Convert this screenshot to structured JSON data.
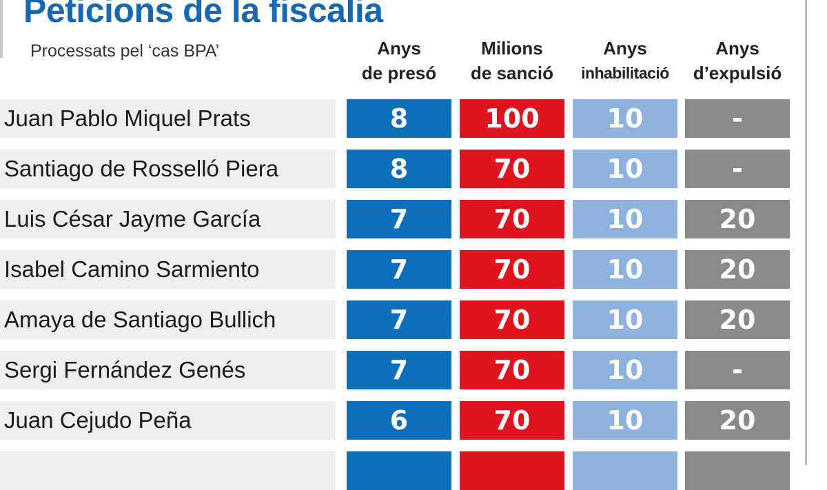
{
  "title": "Peticions de la fiscalia",
  "subtitle": "Processats pel ‘cas BPA’",
  "colors": {
    "title": "#1568b3",
    "col_preso": "#0d6eb9",
    "col_sancio": "#e0141f",
    "col_inhab": "#8fb2dc",
    "col_expulsio": "#8a8a8a",
    "name_bg": "#eeeeee"
  },
  "chart_data": {
    "type": "table",
    "columns": [
      {
        "key": "preso",
        "line1": "Anys",
        "line2": "de presó"
      },
      {
        "key": "sancio",
        "line1": "Milions",
        "line2": "de sanció"
      },
      {
        "key": "inhab",
        "line1": "Anys",
        "line2": "inhabilitació"
      },
      {
        "key": "expulsio",
        "line1": "Anys",
        "line2": "d’expulsió"
      }
    ],
    "rows": [
      {
        "name": "Juan Pablo Miquel Prats",
        "preso": "8",
        "sancio": "100",
        "inhab": "10",
        "expulsio": "-"
      },
      {
        "name": "Santiago de Rosselló Piera",
        "preso": "8",
        "sancio": "70",
        "inhab": "10",
        "expulsio": "-"
      },
      {
        "name": "Luis César Jayme García",
        "preso": "7",
        "sancio": "70",
        "inhab": "10",
        "expulsio": "20"
      },
      {
        "name": "Isabel Camino Sarmiento",
        "preso": "7",
        "sancio": "70",
        "inhab": "10",
        "expulsio": "20"
      },
      {
        "name": "Amaya de Santiago Bullich",
        "preso": "7",
        "sancio": "70",
        "inhab": "10",
        "expulsio": "20"
      },
      {
        "name": "Sergi Fernández Genés",
        "preso": "7",
        "sancio": "70",
        "inhab": "10",
        "expulsio": "-"
      },
      {
        "name": "Juan Cejudo Peña",
        "preso": "6",
        "sancio": "70",
        "inhab": "10",
        "expulsio": "20"
      },
      {
        "name": "",
        "preso": "",
        "sancio": "",
        "inhab": "",
        "expulsio": ""
      }
    ]
  }
}
